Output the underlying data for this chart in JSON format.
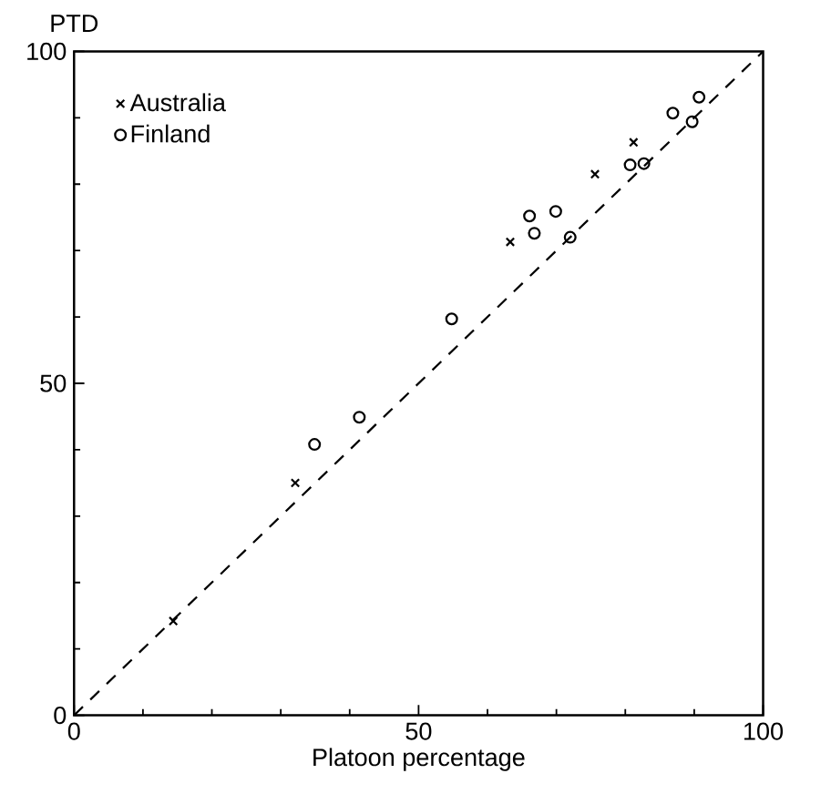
{
  "chart_data": {
    "type": "scatter",
    "xlabel": "Platoon percentage",
    "ylabel": "PTD",
    "xlim": [
      0,
      100
    ],
    "ylim": [
      0,
      100
    ],
    "xticks": [
      0,
      50,
      100
    ],
    "yticks": [
      0,
      50,
      100
    ],
    "grid": false,
    "legend": "top left",
    "series": [
      {
        "name": "Australia",
        "color": "#000000",
        "marker": "cross",
        "x": [
          14.4,
          32.1,
          63.3,
          75.6,
          81.2
        ],
        "values": [
          14.2,
          35.0,
          71.3,
          81.5,
          86.3
        ]
      },
      {
        "name": "Finland",
        "color": "#000000",
        "marker": "circle",
        "x": [
          34.9,
          41.4,
          54.8,
          66.1,
          66.8,
          69.9,
          72.0,
          80.7,
          82.7,
          86.9,
          89.7,
          90.7
        ],
        "values": [
          40.8,
          44.9,
          59.7,
          75.2,
          72.6,
          75.9,
          72.0,
          82.9,
          83.1,
          90.7,
          89.4,
          93.1
        ]
      },
      {
        "type": "line",
        "color": "#000000",
        "line_style": "dashed",
        "marker": "none",
        "x": [
          0,
          100
        ],
        "values": [
          0,
          100
        ]
      }
    ]
  }
}
